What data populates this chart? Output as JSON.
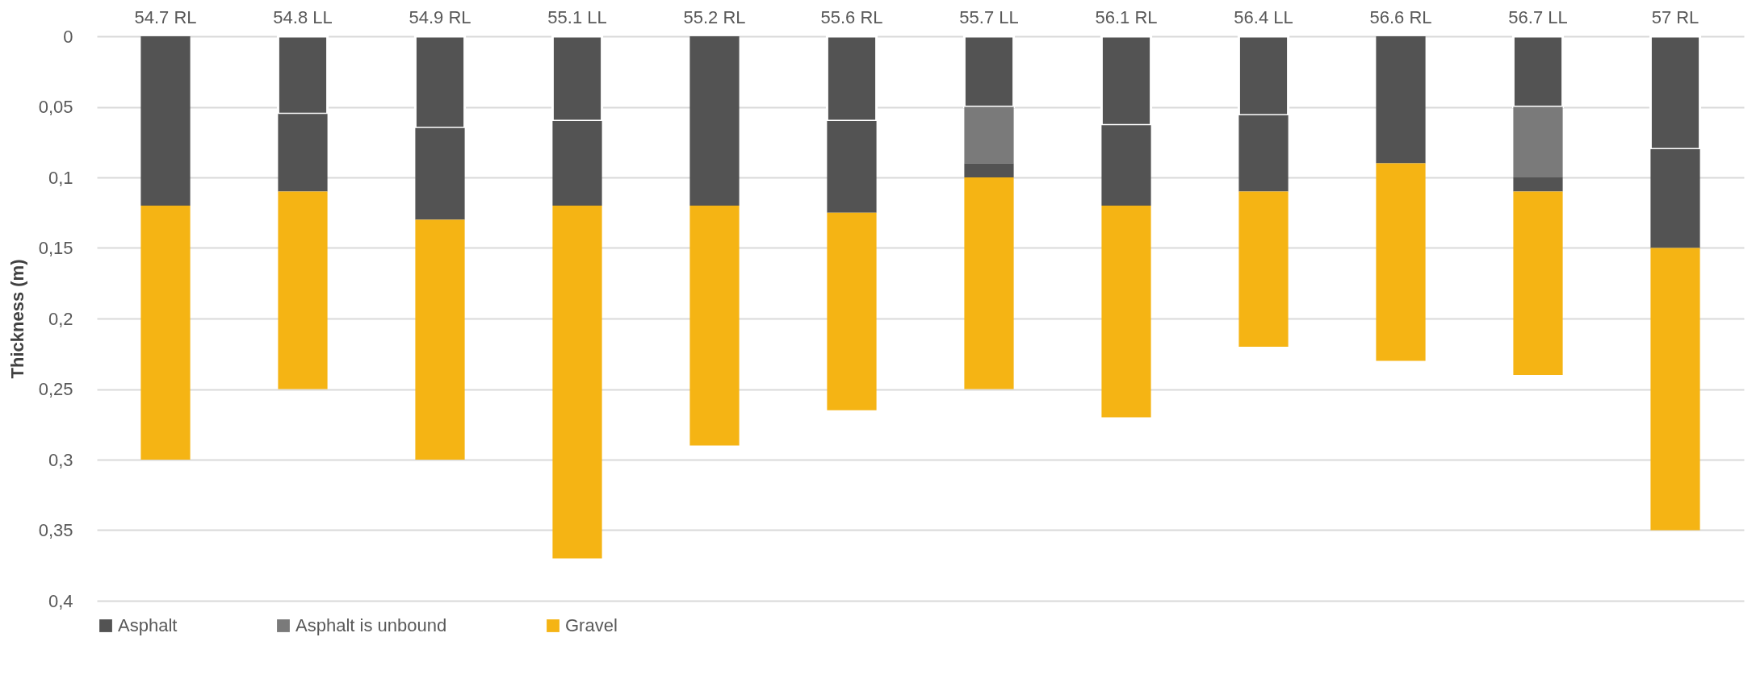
{
  "chart_data": {
    "type": "bar",
    "stacked": true,
    "ylabel": "Thickness (m)",
    "categories": [
      "54.7 RL",
      "54.8 LL",
      "54.9 RL",
      "55.1 LL",
      "55.2 RL",
      "55.6 RL",
      "55.7 LL",
      "56.1 RL",
      "56.4 LL",
      "56.6 RL",
      "56.7 LL",
      "57 RL"
    ],
    "series": [
      {
        "name": "Asphalt",
        "color": "#535353",
        "values": [
          null,
          0.055,
          0.065,
          0.06,
          null,
          0.06,
          0.05,
          0.063,
          0.056,
          null,
          0.05,
          0.08
        ]
      },
      {
        "name": "Asphalt is unbound",
        "color": "#7a7a7a",
        "values": [
          null,
          null,
          null,
          null,
          null,
          null,
          0.04,
          null,
          null,
          null,
          0.05,
          null
        ]
      },
      {
        "color": "#535353",
        "values": [
          0.12,
          0.055,
          0.065,
          0.06,
          0.12,
          0.065,
          0.01,
          0.057,
          0.054,
          0.09,
          0.01,
          0.07
        ]
      },
      {
        "name": "Gravel",
        "color": "#f5b414",
        "values": [
          0.18,
          0.14,
          0.17,
          0.25,
          0.17,
          0.14,
          0.15,
          0.15,
          0.11,
          0.14,
          0.13,
          0.2
        ]
      }
    ],
    "ylim": [
      0.4,
      0
    ],
    "yticks": [
      {
        "value": 0,
        "label": "0"
      },
      {
        "value": 0.05,
        "label": "0,05"
      },
      {
        "value": 0.1,
        "label": "0,1"
      },
      {
        "value": 0.15,
        "label": "0,15"
      },
      {
        "value": 0.2,
        "label": "0,2"
      },
      {
        "value": 0.25,
        "label": "0,25"
      },
      {
        "value": 0.3,
        "label": "0,3"
      },
      {
        "value": 0.35,
        "label": "0,35"
      },
      {
        "value": 0.4,
        "label": "0,4"
      }
    ],
    "grid": "y",
    "legend": "bottom"
  }
}
